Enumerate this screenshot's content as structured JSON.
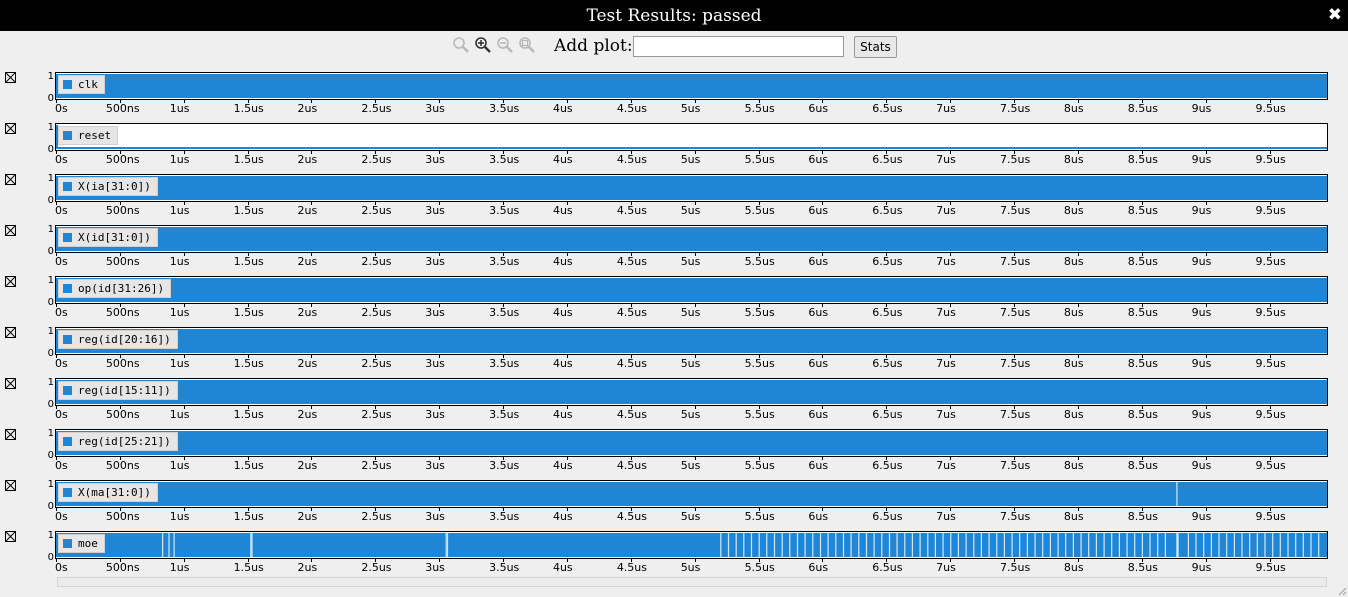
{
  "window": {
    "title": "Test Results: passed",
    "close_glyph": "✖"
  },
  "toolbar": {
    "zoom_icons": [
      "zoom-fit-icon",
      "zoom-in-icon",
      "zoom-out-icon",
      "zoom-reset-icon"
    ],
    "add_plot_label": "Add plot:",
    "add_plot_value": "",
    "stats_label": "Stats"
  },
  "colors": {
    "signal": "#1f86d6",
    "plot_background": "#ffffff",
    "legend_background": "#e6e6e6",
    "title_bar": "#000000"
  },
  "x_axis": {
    "tick_labels": [
      "0s",
      "500ns",
      "1us",
      "1.5us",
      "2us",
      "2.5us",
      "3us",
      "3.5us",
      "4us",
      "4.5us",
      "5us",
      "5.5us",
      "6us",
      "6.5us",
      "7us",
      "7.5us",
      "8us",
      "8.5us",
      "9us",
      "9.5us"
    ],
    "tick_values_ns": [
      0,
      500,
      1000,
      1500,
      2000,
      2500,
      3000,
      3500,
      4000,
      4500,
      5000,
      5500,
      6000,
      6500,
      7000,
      7500,
      8000,
      8500,
      9000,
      9500
    ],
    "range_ns": [
      0,
      9950
    ]
  },
  "y_axis": {
    "top_label": "1",
    "bottom_label": "0"
  },
  "plots": [
    {
      "signal": "clk",
      "display": "solid"
    },
    {
      "signal": "reset",
      "display": "low-with-initial-pulse",
      "pulse_end_ns": 15
    },
    {
      "signal": "X(ia[31:0])",
      "display": "solid"
    },
    {
      "signal": "X(id[31:0])",
      "display": "solid"
    },
    {
      "signal": "op(id[31:26])",
      "display": "solid"
    },
    {
      "signal": "reg(id[20:16])",
      "display": "solid"
    },
    {
      "signal": "reg(id[15:11])",
      "display": "solid"
    },
    {
      "signal": "reg(id[25:21])",
      "display": "solid"
    },
    {
      "signal": "X(ma[31:0])",
      "display": "solid",
      "gaps_ns": [
        8770
      ]
    },
    {
      "signal": "moe",
      "display": "solid",
      "gaps_ns": [
        830,
        880,
        920,
        1520,
        1530,
        3050,
        3060,
        5200,
        5260,
        5320,
        5380,
        5440,
        5500,
        5560,
        5620,
        5680,
        5740,
        5800,
        5860,
        5920,
        5980,
        6040,
        6100,
        6160,
        6220,
        6280,
        6340,
        6400,
        6460,
        6520,
        6580,
        6640,
        6700,
        6760,
        6820,
        6880,
        6940,
        7000,
        7060,
        7120,
        7180,
        7240,
        7300,
        7360,
        7420,
        7480,
        7540,
        7600,
        7660,
        7720,
        7780,
        7840,
        7900,
        7960,
        8020,
        8080,
        8140,
        8200,
        8260,
        8320,
        8380,
        8440,
        8500,
        8560,
        8620,
        8680,
        8770,
        8780,
        8860,
        8920,
        8980,
        9040,
        9100,
        9160,
        9220,
        9280,
        9340,
        9400,
        9460,
        9520,
        9580,
        9640,
        9700,
        9760,
        9820,
        9880
      ]
    }
  ]
}
